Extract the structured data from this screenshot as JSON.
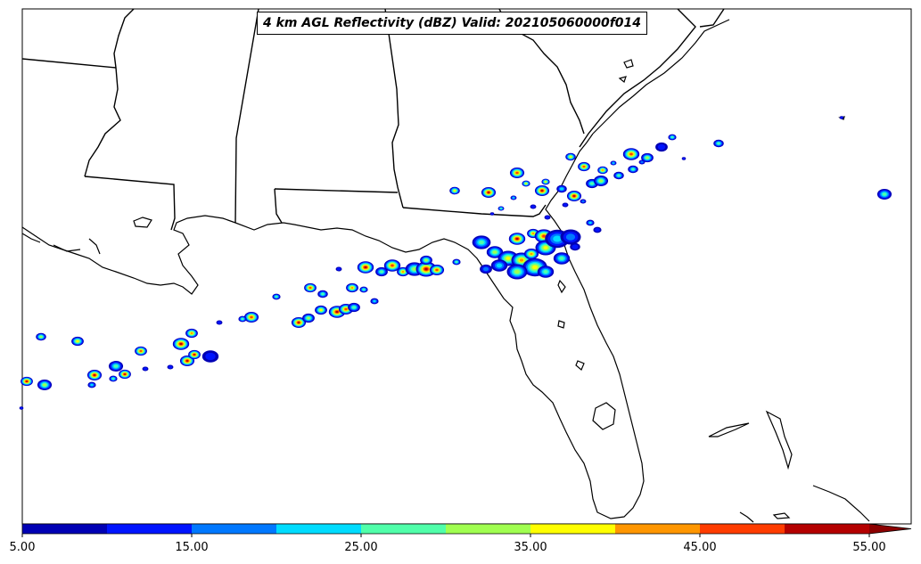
{
  "title": "4 km AGL Reflectivity (dBZ) Valid: 202105060000f014",
  "colorbar": {
    "tick_labels": [
      "5.00",
      "15.00",
      "25.00",
      "35.00",
      "45.00",
      "55.00"
    ],
    "min": 5,
    "max": 55,
    "step": 5,
    "extend": "max",
    "colors": [
      "#0000b4",
      "#0014ff",
      "#0078ff",
      "#00dcff",
      "#50ffaa",
      "#a0ff50",
      "#ffff00",
      "#ff9600",
      "#ff3c00",
      "#b40000"
    ],
    "extend_color": "#8c0000"
  },
  "map": {
    "region": "Southeastern United States and Gulf of Mexico",
    "coastline_color": "#000000",
    "ocean_color": "#ffffff",
    "land_color": "#ffffff"
  }
}
